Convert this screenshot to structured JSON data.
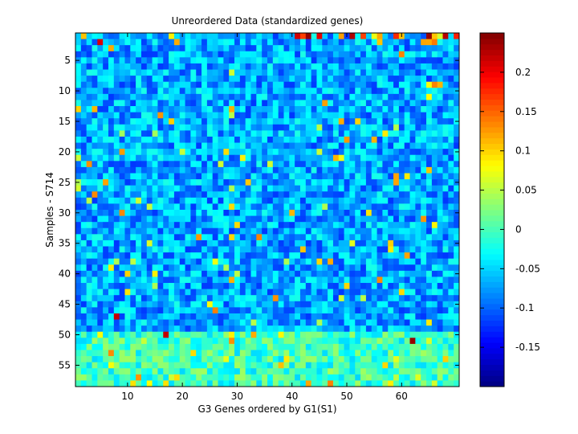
{
  "chart_data": {
    "type": "heatmap",
    "title": "Unreordered Data (standardized genes)",
    "xlabel": "G3 Genes ordered by G1(S1)",
    "ylabel": "Samples - S714",
    "x_range": [
      1,
      70
    ],
    "y_range": [
      1,
      58
    ],
    "y_direction": "top-to-bottom",
    "x_ticks": [
      10,
      20,
      30,
      40,
      50,
      60
    ],
    "y_ticks": [
      5,
      10,
      15,
      20,
      25,
      30,
      35,
      40,
      45,
      50,
      55
    ],
    "colorbar": {
      "colormap": "jet",
      "range": [
        -0.2,
        0.25
      ],
      "ticks": [
        0.2,
        0.15,
        0.1,
        0.05,
        0,
        -0.05,
        -0.1,
        -0.15
      ],
      "tick_labels": [
        "0.2",
        "0.15",
        "0.1",
        "0.05",
        "0",
        "-0.05",
        "-0.1",
        "-0.15"
      ]
    },
    "grid": false,
    "cell_value_notes": "Values are mostly in -0.12..-0.02 (blue/cyan); rows 50-58 are lighter (~-0.02..0.05); sparse outliers up to ~0.25 (red/dark red), notably along the top row near genes 43-64 and at (5,2),(8,47),(17,50),(62,51)."
  }
}
